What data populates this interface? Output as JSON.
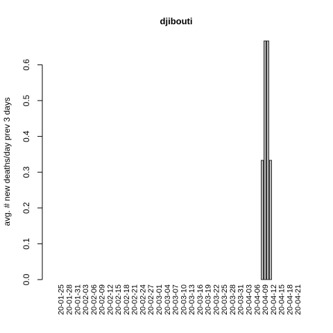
{
  "chart_data": {
    "type": "bar",
    "title": "djibouti",
    "ylabel": "avg. # new deaths/day prev  3  days",
    "xlabel": "",
    "ylim": [
      0,
      0.6667
    ],
    "yticks": [
      "0.0",
      "0.1",
      "0.2",
      "0.3",
      "0.4",
      "0.5",
      "0.6"
    ],
    "ytick_values": [
      0,
      0.1,
      0.2,
      0.3,
      0.4,
      0.5,
      0.6
    ],
    "xtick_labels": [
      "20-01-25",
      "20-01-28",
      "20-01-31",
      "20-02-03",
      "20-02-06",
      "20-02-09",
      "20-02-12",
      "20-02-15",
      "20-02-18",
      "20-02-21",
      "20-02-24",
      "20-02-27",
      "20-03-01",
      "20-03-04",
      "20-03-07",
      "20-03-10",
      "20-03-13",
      "20-03-16",
      "20-03-19",
      "20-03-22",
      "20-03-25",
      "20-03-28",
      "20-03-31",
      "20-04-03",
      "20-04-06",
      "20-04-09",
      "20-04-12",
      "20-04-15",
      "20-04-18",
      "20-04-21"
    ],
    "start_date": "2020-01-22",
    "n_bars": 92,
    "nonzero": [
      {
        "date": "20-04-08",
        "value": 0.3333
      },
      {
        "date": "20-04-09",
        "value": 0.6667
      },
      {
        "date": "20-04-10",
        "value": 0.6667
      },
      {
        "date": "20-04-11",
        "value": 0.3333
      }
    ],
    "bar_fill": "#bebebe",
    "bar_stroke": "#000000",
    "grid": false
  }
}
